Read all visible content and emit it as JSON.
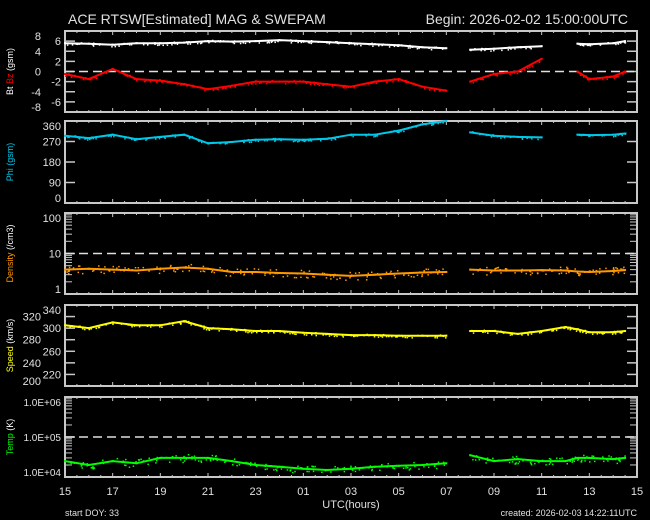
{
  "header": {
    "title": "ACE RTSW[Estimated] MAG & SWEPAM",
    "begin": "Begin: 2026-02-02 15:00:00UTC"
  },
  "footer": {
    "start_doy": "start DOY:  33",
    "created": "created: 2026-02-03 14:22:11UTC"
  },
  "chart_data": [
    {
      "type": "line",
      "panel": "mag",
      "ylabel_parts": [
        {
          "text": "Bt",
          "color": "#ffffff"
        },
        {
          "text": "Bz",
          "color": "#ff0000"
        },
        {
          "text": "(gsm)",
          "color": "#ffffff"
        }
      ],
      "ylim": [
        -8,
        8
      ],
      "yticks": [
        "-8",
        "-6",
        "-4",
        "-2",
        "0",
        "2",
        "4",
        "6",
        "8"
      ],
      "ytick_values": [
        -8,
        -6,
        -4,
        -2,
        0,
        2,
        4,
        6,
        8
      ],
      "scale": "linear",
      "reference_line": 0,
      "series": [
        {
          "name": "Bt",
          "color": "#ffffff",
          "values": [
            5.6,
            5.5,
            5.3,
            5.6,
            5.6,
            5.7,
            6.0,
            5.9,
            6.0,
            6.2,
            6.0,
            5.8,
            5.6,
            5.4,
            5.2,
            4.8,
            4.6,
            null,
            4.3,
            4.5,
            4.8,
            5.0,
            null,
            5.5,
            5.4,
            5.6,
            6.0
          ]
        },
        {
          "name": "Bz",
          "color": "#ff0000",
          "values": [
            -0.5,
            -1.5,
            0.5,
            -1.5,
            -1.8,
            -2.5,
            -3.5,
            -2.8,
            -2,
            -2,
            -2,
            -2.5,
            -3,
            -2,
            -1.5,
            -3,
            -3.8,
            null,
            -2,
            -0.5,
            0,
            2.5,
            null,
            0,
            -1.5,
            -1,
            0
          ]
        }
      ]
    },
    {
      "type": "line",
      "panel": "phi",
      "ylabel_parts": [
        {
          "text": "Phi",
          "color": "#00c8e8"
        },
        {
          "text": "(gsm)",
          "color": "#00c8e8"
        }
      ],
      "ylim": [
        0,
        360
      ],
      "yticks": [
        "0",
        "90",
        "180",
        "270",
        "360"
      ],
      "ytick_values": [
        0,
        90,
        180,
        270,
        360
      ],
      "scale": "linear",
      "series": [
        {
          "name": "Phi",
          "color": "#00c8e8",
          "values": [
            295,
            285,
            300,
            280,
            290,
            300,
            262,
            268,
            278,
            280,
            278,
            282,
            300,
            300,
            318,
            345,
            360,
            null,
            310,
            295,
            290,
            288,
            null,
            300,
            298,
            300,
            305
          ]
        }
      ]
    },
    {
      "type": "line",
      "panel": "density",
      "ylabel_parts": [
        {
          "text": "Density",
          "color": "#ff9900"
        },
        {
          "text": "(/cm3)",
          "color": "#ffffff"
        }
      ],
      "ylim": [
        1,
        100
      ],
      "yticks": [
        "1",
        "10",
        "100"
      ],
      "ytick_values": [
        1,
        10,
        100
      ],
      "scale": "log",
      "reference_line": 10,
      "series": [
        {
          "name": "Density",
          "color": "#ff9900",
          "values": [
            4,
            4.2,
            4,
            3.8,
            4.2,
            4.5,
            4.2,
            3.5,
            3.5,
            3.3,
            3.2,
            3.0,
            2.8,
            3.0,
            3.2,
            3.4,
            3.5,
            null,
            4.0,
            3.8,
            3.8,
            3.9,
            3.8,
            3.6,
            3.5,
            3.7,
            3.9
          ]
        }
      ]
    },
    {
      "type": "line",
      "panel": "speed",
      "ylabel_parts": [
        {
          "text": "Speed",
          "color": "#ffff00"
        },
        {
          "text": "(km/s)",
          "color": "#ffffff"
        }
      ],
      "ylim": [
        200,
        340
      ],
      "yticks": [
        "200",
        "220",
        "240",
        "260",
        "280",
        "300",
        "320",
        "340"
      ],
      "ytick_values": [
        200,
        220,
        240,
        260,
        280,
        300,
        320,
        340
      ],
      "scale": "linear",
      "series": [
        {
          "name": "Speed",
          "color": "#ffff00",
          "values": [
            305,
            300,
            310,
            305,
            305,
            312,
            300,
            298,
            295,
            295,
            292,
            290,
            288,
            288,
            287,
            287,
            287,
            null,
            295,
            295,
            290,
            295,
            302,
            298,
            293,
            293,
            295
          ]
        }
      ]
    },
    {
      "type": "line",
      "panel": "temp",
      "ylabel_parts": [
        {
          "text": "Temp",
          "color": "#00ff00"
        },
        {
          "text": "(K)",
          "color": "#ffffff"
        }
      ],
      "ylim": [
        10000,
        1000000
      ],
      "yticks": [
        "1.0E+04",
        "1.0E+05",
        "1.0E+06"
      ],
      "ytick_values": [
        10000,
        100000,
        1000000
      ],
      "scale": "log",
      "reference_line": 100000,
      "series": [
        {
          "name": "Temp",
          "color": "#00ff00",
          "values": [
            25000,
            20000,
            25000,
            22000,
            30000,
            30000,
            30000,
            25000,
            20000,
            18000,
            16000,
            15000,
            16000,
            18000,
            19000,
            20000,
            22000,
            null,
            35000,
            25000,
            28000,
            25000,
            25000,
            30000,
            30000,
            28000,
            30000
          ]
        }
      ]
    }
  ],
  "times": [
    "2026-02-02T15:00",
    "2026-02-02T16:00",
    "2026-02-02T17:00",
    "2026-02-02T18:00",
    "2026-02-02T19:00",
    "2026-02-02T20:00",
    "2026-02-02T21:00",
    "2026-02-02T22:00",
    "2026-02-02T23:00",
    "2026-02-03T00:00",
    "2026-02-03T01:00",
    "2026-02-03T02:00",
    "2026-02-03T03:00",
    "2026-02-03T04:00",
    "2026-02-03T05:00",
    "2026-02-03T06:00",
    "2026-02-03T07:00",
    "2026-02-03T07:30",
    "2026-02-03T08:00",
    "2026-02-03T09:00",
    "2026-02-03T10:00",
    "2026-02-03T11:00",
    "2026-02-03T12:00",
    "2026-02-03T12:30",
    "2026-02-03T13:00",
    "2026-02-03T14:00",
    "2026-02-03T14:30"
  ],
  "xaxis": {
    "label": "UTC(hours)",
    "range": [
      "2026-02-02T15:00",
      "2026-02-03T15:00"
    ],
    "tick_labels": [
      "15",
      "17",
      "19",
      "21",
      "23",
      "01",
      "03",
      "05",
      "07",
      "09",
      "11",
      "13",
      "15"
    ]
  }
}
